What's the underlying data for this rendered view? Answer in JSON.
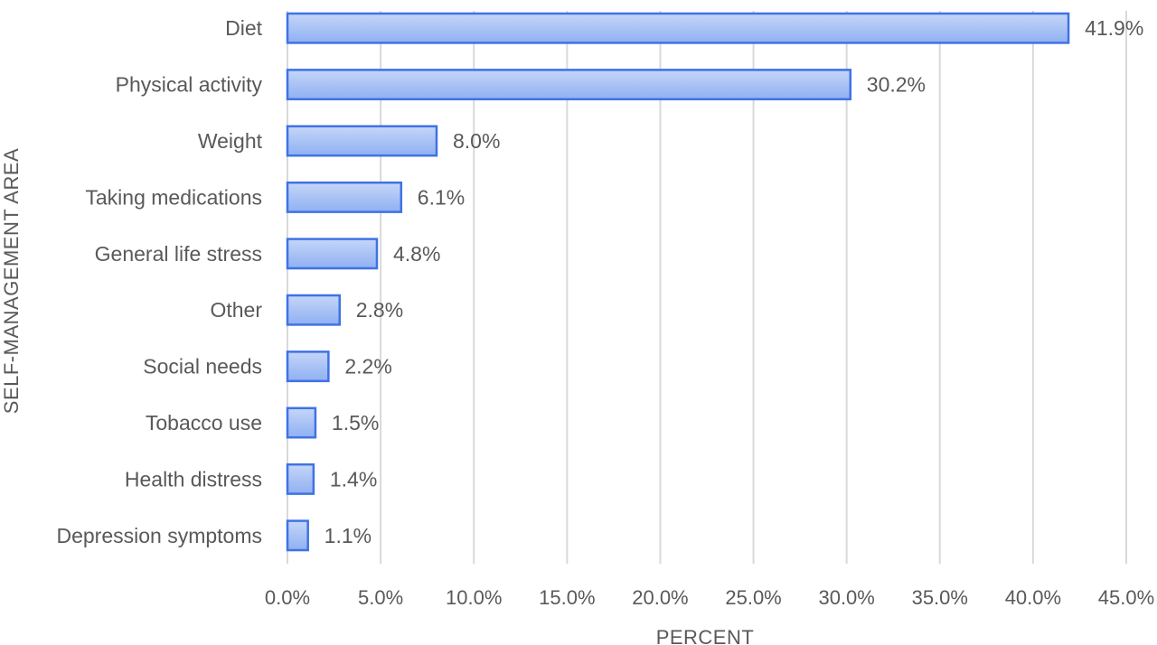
{
  "chart_data": {
    "type": "bar",
    "orientation": "horizontal",
    "categories": [
      "Diet",
      "Physical activity",
      "Weight",
      "Taking medications",
      "General life stress",
      "Other",
      "Social needs",
      "Tobacco use",
      "Health distress",
      "Depression symptoms"
    ],
    "values": [
      41.9,
      30.2,
      8.0,
      6.1,
      4.8,
      2.8,
      2.2,
      1.5,
      1.4,
      1.1
    ],
    "value_labels": [
      "41.9%",
      "30.2%",
      "8.0%",
      "6.1%",
      "4.8%",
      "2.8%",
      "2.2%",
      "1.5%",
      "1.4%",
      "1.1%"
    ],
    "x_ticks": [
      "0.0%",
      "5.0%",
      "10.0%",
      "15.0%",
      "20.0%",
      "25.0%",
      "30.0%",
      "35.0%",
      "40.0%",
      "45.0%"
    ],
    "xlim": [
      0,
      45
    ],
    "xlabel": "PERCENT",
    "ylabel": "SELF-MANAGEMENT AREA",
    "title": "",
    "grid": "vertical",
    "legend": "none",
    "colors": {
      "bar_fill_top": "#c5d6f8",
      "bar_fill_bottom": "#8fb0f2",
      "bar_stroke": "#3f72e4",
      "gridline": "#d9d9d9",
      "text": "#595959"
    }
  }
}
